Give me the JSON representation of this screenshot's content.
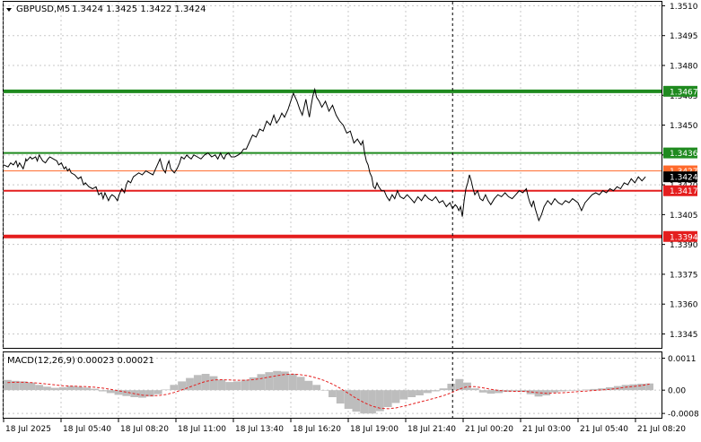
{
  "header": {
    "symbol_tf": "GBPUSD,M5",
    "ohlc": "1.3424 1.3425 1.3422 1.3424",
    "macd_label": "MACD(12,26,9)",
    "macd_values": "0.00023 0.00021"
  },
  "chart_data": [
    {
      "type": "line",
      "title": "GBPUSD,M5",
      "ylim": [
        1.3338,
        1.3512
      ],
      "y_ticks": [
        "1.3510",
        "1.3495",
        "1.3480",
        "1.3465",
        "1.3450",
        "1.3435",
        "1.3420",
        "1.3405",
        "1.3390",
        "1.3375",
        "1.3360",
        "1.3345"
      ],
      "x_ticks": [
        "18 Jul 2025",
        "18 Jul 05:40",
        "18 Jul 08:20",
        "18 Jul 11:00",
        "18 Jul 13:40",
        "18 Jul 16:20",
        "18 Jul 19:00",
        "18 Jul 21:40",
        "21 Jul 00:20",
        "21 Jul 03:00",
        "21 Jul 05:40",
        "21 Jul 08:20"
      ],
      "x_index": [
        0,
        5,
        8,
        11,
        14,
        16,
        18,
        22,
        24,
        25,
        26,
        30,
        32,
        36,
        38,
        40,
        44,
        47,
        50,
        52,
        56,
        60,
        62,
        65,
        68,
        70,
        72,
        74,
        76,
        80,
        84,
        87,
        90,
        92,
        96,
        100,
        104,
        107,
        110,
        112,
        114,
        116,
        118,
        120,
        122,
        125,
        128,
        130,
        133,
        136,
        138,
        140,
        143,
        146,
        149,
        152,
        156,
        160,
        164,
        168,
        172,
        176,
        179,
        182,
        184,
        186,
        188,
        190,
        192,
        195,
        198,
        200,
        203,
        206,
        208,
        211,
        214,
        218,
        222,
        226,
        230,
        234,
        238,
        241,
        244,
        246,
        248,
        250,
        253,
        256,
        260,
        264,
        267,
        270,
        273,
        276,
        280,
        284,
        288,
        292,
        296,
        300,
        304,
        307,
        310,
        313,
        316,
        320,
        323,
        326,
        330,
        333,
        336,
        338,
        340,
        342,
        344,
        346,
        348,
        350,
        352,
        355,
        358,
        362,
        366,
        370,
        374,
        378,
        382,
        386,
        390,
        394,
        398,
        402,
        404,
        406,
        408,
        410,
        412,
        414,
        416,
        418,
        420,
        422,
        425,
        428,
        431,
        434,
        437,
        440,
        443,
        446,
        450,
        454,
        458,
        462,
        466,
        470,
        474,
        478,
        482,
        486,
        490,
        494,
        498,
        502,
        505,
        508,
        510,
        512,
        514,
        516,
        518,
        520,
        522,
        524,
        526,
        528,
        530,
        533,
        536,
        539,
        542,
        545,
        548,
        552,
        556,
        560,
        564,
        568,
        572,
        576,
        580,
        584,
        588,
        590,
        592,
        594,
        596,
        598,
        600,
        602,
        605,
        608,
        612,
        616,
        620,
        624,
        628,
        632,
        636,
        640,
        643,
        646,
        650,
        654,
        658,
        662,
        666,
        670,
        674,
        678,
        682,
        686,
        690,
        694,
        698,
        702,
        706,
        710,
        714,
        718,
        722,
        726
      ],
      "price": [
        1.343,
        1.3429,
        1.3431,
        1.343,
        1.3432,
        1.3429,
        1.3431,
        1.3428,
        1.3431,
        1.3433,
        1.3432,
        1.3434,
        1.3433,
        1.3434,
        1.3432,
        1.3435,
        1.3432,
        1.3431,
        1.3433,
        1.3434,
        1.3433,
        1.3432,
        1.343,
        1.3431,
        1.3428,
        1.3429,
        1.3427,
        1.3428,
        1.3426,
        1.3425,
        1.3423,
        1.3424,
        1.342,
        1.3421,
        1.3419,
        1.3418,
        1.3419,
        1.3415,
        1.3416,
        1.3413,
        1.3416,
        1.3414,
        1.3412,
        1.3414,
        1.3415,
        1.3414,
        1.3412,
        1.3415,
        1.3418,
        1.3416,
        1.342,
        1.3422,
        1.3421,
        1.3424,
        1.3425,
        1.3426,
        1.3425,
        1.3427,
        1.3426,
        1.3425,
        1.3429,
        1.3433,
        1.3428,
        1.3426,
        1.343,
        1.3432,
        1.3428,
        1.3427,
        1.3426,
        1.3428,
        1.3431,
        1.3434,
        1.3433,
        1.3435,
        1.3434,
        1.3433,
        1.3435,
        1.3434,
        1.3433,
        1.3435,
        1.3436,
        1.3434,
        1.3435,
        1.3433,
        1.3436,
        1.3434,
        1.3433,
        1.3435,
        1.3436,
        1.3434,
        1.3434,
        1.3435,
        1.3436,
        1.3438,
        1.3438,
        1.3441,
        1.3445,
        1.3444,
        1.3448,
        1.3447,
        1.3452,
        1.345,
        1.3455,
        1.3451,
        1.3453,
        1.3456,
        1.3454,
        1.3458,
        1.3462,
        1.3466,
        1.3462,
        1.3458,
        1.3455,
        1.3459,
        1.3463,
        1.3458,
        1.3454,
        1.346,
        1.3465,
        1.3468,
        1.3464,
        1.3462,
        1.3459,
        1.3462,
        1.3457,
        1.346,
        1.3455,
        1.3452,
        1.345,
        1.3446,
        1.3447,
        1.3441,
        1.3443,
        1.344,
        1.3442,
        1.3436,
        1.3432,
        1.343,
        1.3426,
        1.3424,
        1.3419,
        1.3418,
        1.3421,
        1.3419,
        1.3417,
        1.3417,
        1.3414,
        1.3412,
        1.3415,
        1.3413,
        1.3417,
        1.3414,
        1.3413,
        1.3415,
        1.3413,
        1.3411,
        1.3414,
        1.3412,
        1.3415,
        1.3413,
        1.3412,
        1.3414,
        1.3411,
        1.3412,
        1.3409,
        1.3411,
        1.3408,
        1.341,
        1.3409,
        1.3407,
        1.3409,
        1.3404,
        1.3412,
        1.3418,
        1.3421,
        1.3425,
        1.3422,
        1.3418,
        1.3415,
        1.3417,
        1.3413,
        1.3412,
        1.3415,
        1.3412,
        1.341,
        1.3413,
        1.3415,
        1.3414,
        1.3416,
        1.3414,
        1.3413,
        1.3415,
        1.3417,
        1.3416,
        1.3418,
        1.3414,
        1.3411,
        1.3409,
        1.3412,
        1.3408,
        1.3405,
        1.3402,
        1.3405,
        1.3409,
        1.3412,
        1.341,
        1.3413,
        1.3411,
        1.341,
        1.3412,
        1.3411,
        1.3413,
        1.3412,
        1.3411,
        1.3407,
        1.3411,
        1.3413,
        1.3415,
        1.3416,
        1.3415,
        1.3417,
        1.3416,
        1.3418,
        1.3417,
        1.3419,
        1.3418,
        1.3421,
        1.342,
        1.3423,
        1.3421,
        1.3424,
        1.3422,
        1.3424
      ],
      "levels": [
        {
          "label": "1.3467",
          "color": "#1f8a1f"
        },
        {
          "label": "1.3436",
          "color": "#1f8a1f"
        },
        {
          "label": "1.3427",
          "color": "#ff6a2c"
        },
        {
          "label": "1.3417",
          "color": "#e41e1e"
        },
        {
          "label": "1.3394",
          "color": "#e41e1e"
        }
      ],
      "current_price": "1.3424",
      "grid": true,
      "vline_x_index": 505
    },
    {
      "type": "bar",
      "title": "MACD(12,26,9)",
      "ylim": [
        -0.00095,
        0.0013
      ],
      "y_ticks": [
        "0.0011",
        "0.00",
        "-0.0008"
      ],
      "histogram": [
        0.00035,
        0.00032,
        0.0003,
        0.00026,
        0.00018,
        0.00012,
        8e-05,
        0.0001,
        0.00014,
        0.00012,
        9e-05,
        5e-05,
        -4e-05,
        -0.0001,
        -0.00016,
        -0.0002,
        -0.00024,
        -0.00026,
        -0.00022,
        -0.00014,
        2e-05,
        0.00018,
        0.0003,
        0.00042,
        0.00052,
        0.00056,
        0.00048,
        0.00036,
        0.00028,
        0.0003,
        0.00036,
        0.00044,
        0.00055,
        0.00062,
        0.00066,
        0.00064,
        0.00056,
        0.00046,
        0.00032,
        0.00018,
        0.0,
        -0.00024,
        -0.00046,
        -0.00064,
        -0.00074,
        -0.0008,
        -0.0008,
        -0.00072,
        -0.00058,
        -0.00044,
        -0.00032,
        -0.00024,
        -0.00018,
        -0.0001,
        -4e-05,
        6e-05,
        0.00022,
        0.00038,
        0.00026,
        6e-05,
        -8e-05,
        -0.00012,
        -0.0001,
        -6e-05,
        -4e-05,
        -6e-05,
        -0.00014,
        -0.00022,
        -0.00018,
        -8e-05,
        -4e-05,
        -2e-05,
        0.0,
        2e-05,
        4e-05,
        6e-05,
        0.0001,
        0.00014,
        0.00018,
        0.0002,
        0.00022,
        0.00023
      ],
      "signal": [
        0.00026,
        0.00027,
        0.00027,
        0.00026,
        0.00024,
        0.00021,
        0.00018,
        0.00015,
        0.00014,
        0.00013,
        0.00012,
        0.0001,
        7e-05,
        3e-05,
        -2e-05,
        -7e-05,
        -0.00012,
        -0.00017,
        -0.00019,
        -0.00019,
        -0.00015,
        -8e-05,
        1e-05,
        0.00011,
        0.00021,
        0.0003,
        0.00035,
        0.00036,
        0.00035,
        0.00034,
        0.00034,
        0.00036,
        0.0004,
        0.00045,
        0.0005,
        0.00054,
        0.00055,
        0.00053,
        0.00049,
        0.00042,
        0.00033,
        0.00021,
        6e-05,
        -0.00011,
        -0.00028,
        -0.00043,
        -0.00055,
        -0.00062,
        -0.00064,
        -0.00061,
        -0.00055,
        -0.00048,
        -0.00041,
        -0.00034,
        -0.00027,
        -0.00019,
        -9e-05,
        4e-05,
        0.00012,
        0.00012,
        8e-05,
        3e-05,
        -1e-05,
        -3e-05,
        -4e-05,
        -4e-05,
        -6e-05,
        -9e-05,
        -0.00011,
        -0.0001,
        -9e-05,
        -7e-05,
        -5e-05,
        -3e-05,
        -1e-05,
        1e-05,
        3e-05,
        6e-05,
        0.0001,
        0.00013,
        0.00016,
        0.00021
      ]
    }
  ]
}
